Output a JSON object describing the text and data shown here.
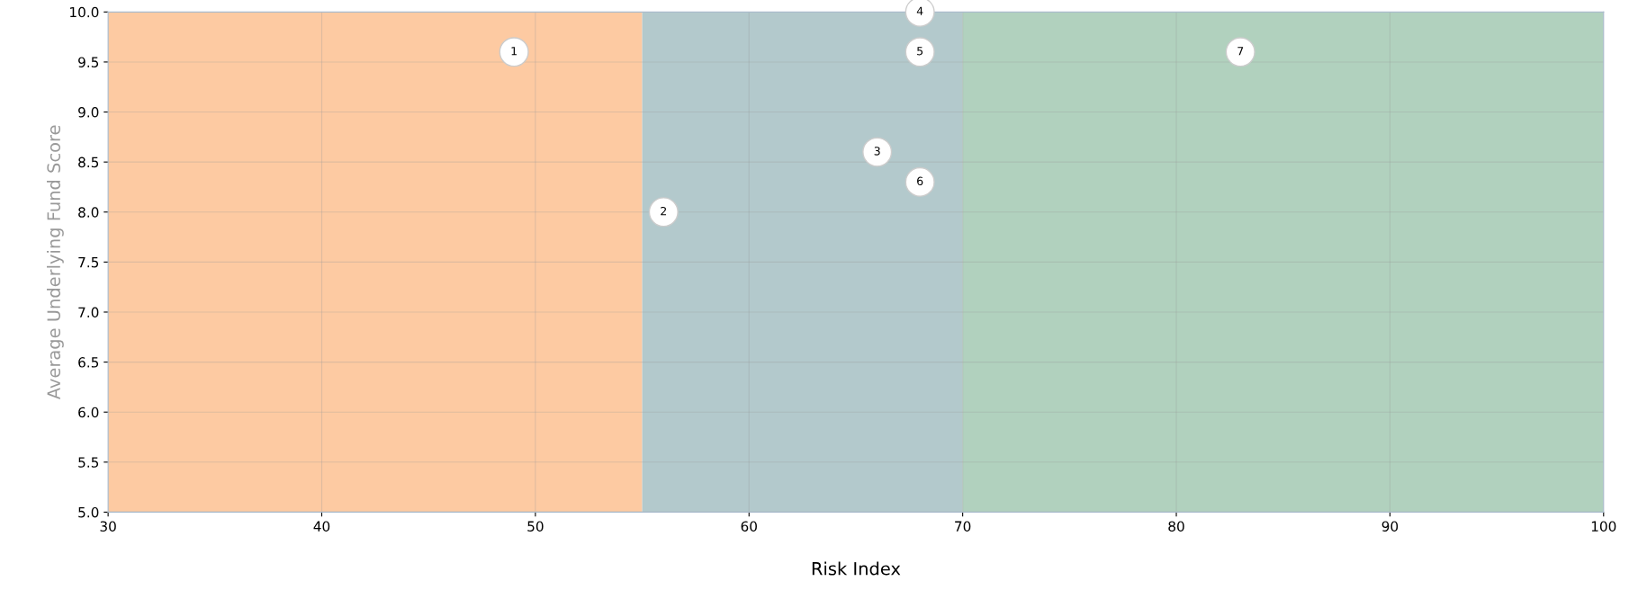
{
  "chart_data": {
    "type": "scatter",
    "xlabel": "Risk Index",
    "ylabel": "Average Underlying Fund Score",
    "x": [
      49,
      56,
      66,
      68,
      68,
      68,
      83
    ],
    "values": [
      9.6,
      8.0,
      8.6,
      10.0,
      9.6,
      8.3,
      9.6
    ],
    "color": "#ffffff",
    "marker": "circle",
    "annotations": [
      {
        "text": "1",
        "x": 49,
        "y": 9.6
      },
      {
        "text": "2",
        "x": 56,
        "y": 8.0
      },
      {
        "text": "3",
        "x": 66,
        "y": 8.6
      },
      {
        "text": "4",
        "x": 68,
        "y": 10.0
      },
      {
        "text": "5",
        "x": 68,
        "y": 9.6
      },
      {
        "text": "6",
        "x": 68,
        "y": 8.3
      },
      {
        "text": "7",
        "x": 83,
        "y": 9.6
      }
    ],
    "bands": [
      {
        "axis": "x",
        "from": 30,
        "to": 55,
        "color": "#fdcaa2"
      },
      {
        "axis": "x",
        "from": 55,
        "to": 70,
        "color": "#b3c9cc"
      },
      {
        "axis": "x",
        "from": 70,
        "to": 100,
        "color": "#b1d1be"
      }
    ],
    "xlim": [
      30,
      100
    ],
    "xticks": [
      30,
      40,
      50,
      60,
      70,
      80,
      90,
      100
    ],
    "ylim": [
      5.0,
      10.0
    ],
    "yticks": [
      {
        "value": 5,
        "label": "5.0"
      },
      {
        "value": 5.5,
        "label": "5.5"
      },
      {
        "value": 6,
        "label": "6.0"
      },
      {
        "value": 6.5,
        "label": "6.5"
      },
      {
        "value": 7,
        "label": "7.0"
      },
      {
        "value": 7.5,
        "label": "7.5"
      },
      {
        "value": 8,
        "label": "8.0"
      },
      {
        "value": 8.5,
        "label": "8.5"
      },
      {
        "value": 9,
        "label": "9.0"
      },
      {
        "value": 9.5,
        "label": "9.5"
      },
      {
        "value": 10,
        "label": "10.0"
      }
    ],
    "grid": true
  }
}
